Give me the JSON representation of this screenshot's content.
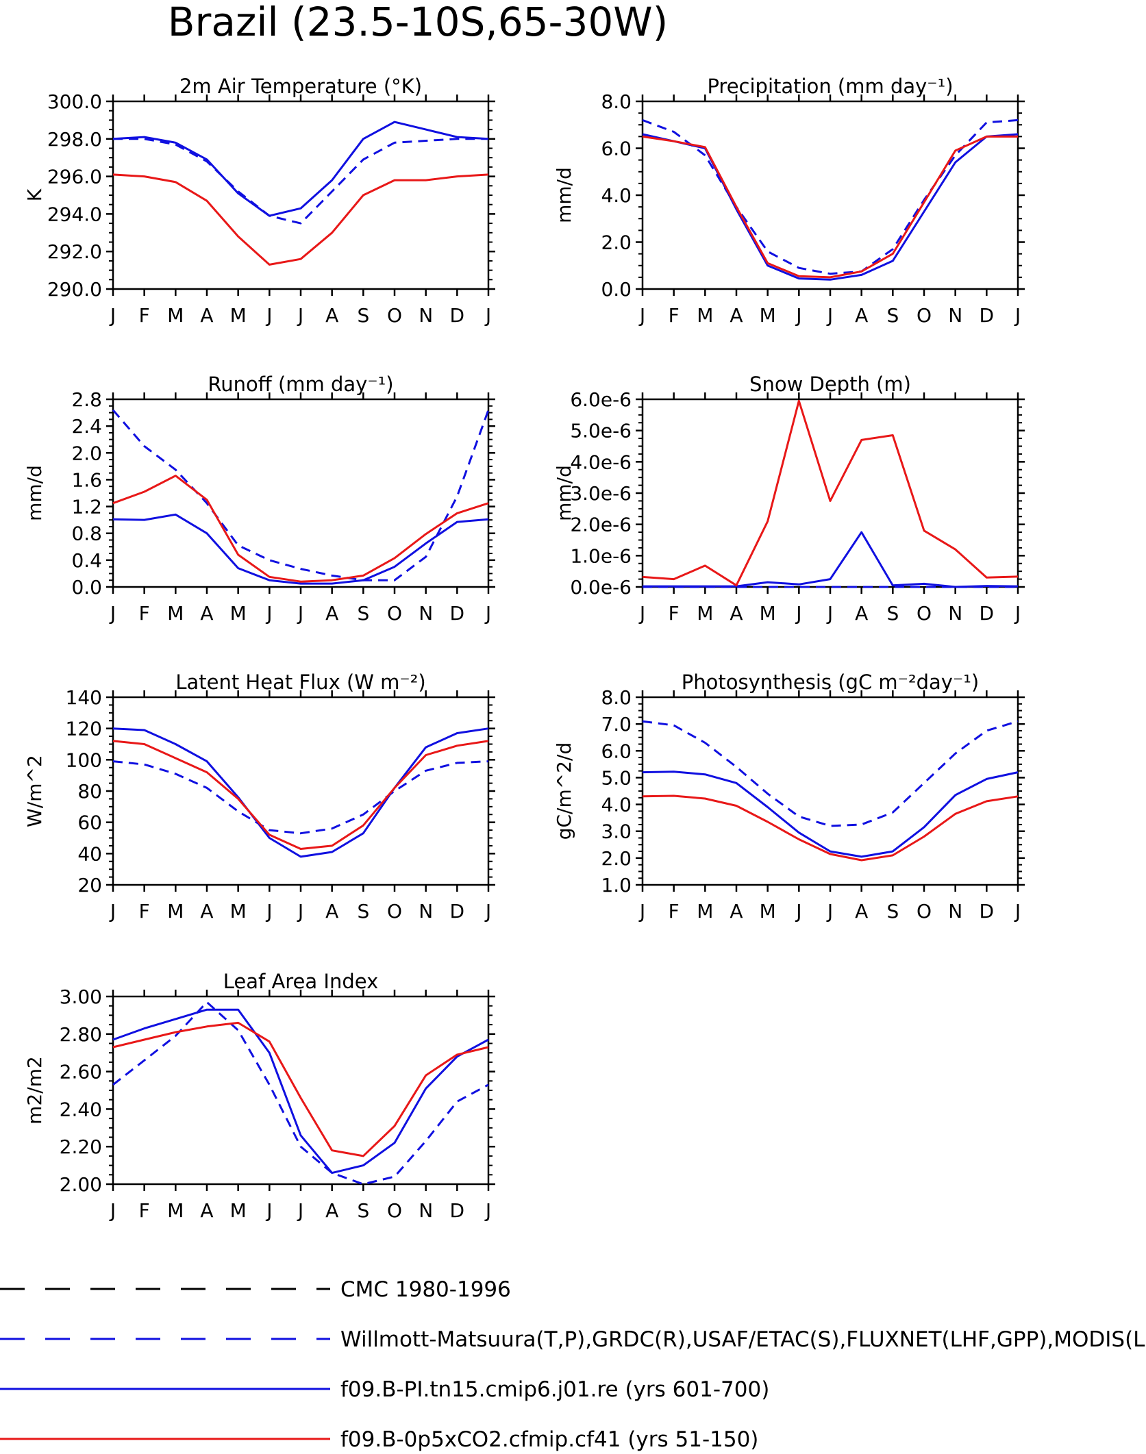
{
  "title": "Brazil (23.5-10S,65-30W)",
  "months": [
    "J",
    "F",
    "M",
    "A",
    "M",
    "J",
    "J",
    "A",
    "S",
    "O",
    "N",
    "D",
    "J"
  ],
  "colors": {
    "obs_blue": "#1010e0",
    "model_red": "#e81818",
    "black": "#000000"
  },
  "legend": [
    {
      "label": "CMC 1980-1996",
      "color": "#000000",
      "dash": true
    },
    {
      "label": "Willmott-Matsuura(T,P),GRDC(R),USAF/ETAC(S),FLUXNET(LHF,GPP),MODIS(L",
      "color": "#1010e0",
      "dash": true
    },
    {
      "label": "f09.B-PI.tn15.cmip6.j01.re (yrs 601-700)",
      "color": "#1010e0",
      "dash": false
    },
    {
      "label": "f09.B-0p5xCO2.cfmip.cf41 (yrs 51-150)",
      "color": "#e81818",
      "dash": false
    }
  ],
  "chart_data": [
    {
      "type": "line",
      "title": "2m Air Temperature (°K)",
      "ylabel": "K",
      "ylim": [
        290,
        300
      ],
      "yticks": [
        "290.0",
        "292.0",
        "294.0",
        "296.0",
        "298.0",
        "300.0"
      ],
      "x": [
        "J",
        "F",
        "M",
        "A",
        "M",
        "J",
        "J",
        "A",
        "S",
        "O",
        "N",
        "D",
        "J"
      ],
      "series": [
        {
          "style": "obs",
          "values": [
            298.0,
            298.0,
            297.7,
            296.8,
            295.2,
            293.9,
            293.5,
            295.2,
            296.9,
            297.8,
            297.9,
            298.0,
            298.0
          ]
        },
        {
          "style": "pi",
          "values": [
            298.0,
            298.1,
            297.8,
            296.9,
            295.1,
            293.9,
            294.3,
            295.8,
            298.0,
            298.9,
            298.5,
            298.1,
            298.0
          ]
        },
        {
          "style": "co2",
          "values": [
            296.1,
            296.0,
            295.7,
            294.7,
            292.8,
            291.3,
            291.6,
            293.0,
            295.0,
            295.8,
            295.8,
            296.0,
            296.1
          ]
        }
      ]
    },
    {
      "type": "line",
      "title": "Precipitation (mm day⁻¹)",
      "ylabel": "mm/d",
      "ylim": [
        0,
        8
      ],
      "yticks": [
        "0.0",
        "2.0",
        "4.0",
        "6.0",
        "8.0"
      ],
      "x": [
        "J",
        "F",
        "M",
        "A",
        "M",
        "J",
        "J",
        "A",
        "S",
        "O",
        "N",
        "D",
        "J"
      ],
      "series": [
        {
          "style": "obs",
          "values": [
            7.2,
            6.7,
            5.7,
            3.5,
            1.6,
            0.9,
            0.65,
            0.75,
            1.7,
            3.8,
            5.7,
            7.1,
            7.2
          ]
        },
        {
          "style": "pi",
          "values": [
            6.6,
            6.3,
            6.0,
            3.4,
            1.0,
            0.45,
            0.4,
            0.6,
            1.2,
            3.3,
            5.4,
            6.5,
            6.6
          ]
        },
        {
          "style": "co2",
          "values": [
            6.5,
            6.3,
            6.05,
            3.5,
            1.1,
            0.55,
            0.5,
            0.75,
            1.5,
            3.7,
            5.9,
            6.5,
            6.5
          ]
        }
      ]
    },
    {
      "type": "line",
      "title": "Runoff (mm day⁻¹)",
      "ylabel": "mm/d",
      "ylim": [
        0,
        2.8
      ],
      "yticks": [
        "0.0",
        "0.4",
        "0.8",
        "1.2",
        "1.6",
        "2.0",
        "2.4",
        "2.8"
      ],
      "x": [
        "J",
        "F",
        "M",
        "A",
        "M",
        "J",
        "J",
        "A",
        "S",
        "O",
        "N",
        "D",
        "J"
      ],
      "series": [
        {
          "style": "obs",
          "values": [
            2.64,
            2.1,
            1.75,
            1.25,
            0.62,
            0.4,
            0.27,
            0.17,
            0.1,
            0.1,
            0.45,
            1.35,
            2.64
          ]
        },
        {
          "style": "pi",
          "values": [
            1.01,
            1.0,
            1.08,
            0.8,
            0.28,
            0.1,
            0.05,
            0.05,
            0.1,
            0.3,
            0.65,
            0.97,
            1.01
          ]
        },
        {
          "style": "co2",
          "values": [
            1.25,
            1.42,
            1.66,
            1.3,
            0.48,
            0.15,
            0.08,
            0.1,
            0.17,
            0.43,
            0.79,
            1.1,
            1.25
          ]
        }
      ]
    },
    {
      "type": "line",
      "title": "Snow Depth (m)",
      "ylabel": "mm/d",
      "ylim": [
        0,
        6
      ],
      "yticks": [
        "0.0e-6",
        "1.0e-6",
        "2.0e-6",
        "3.0e-6",
        "4.0e-6",
        "5.0e-6",
        "6.0e-6"
      ],
      "x": [
        "J",
        "F",
        "M",
        "A",
        "M",
        "J",
        "J",
        "A",
        "S",
        "O",
        "N",
        "D",
        "J"
      ],
      "series": [
        {
          "style": "obs",
          "values": [
            0,
            0,
            0,
            0,
            0,
            0,
            0,
            0,
            0,
            0,
            0,
            0,
            0
          ]
        },
        {
          "style": "pi",
          "values": [
            0.02,
            0.02,
            0.02,
            0.02,
            0.15,
            0.08,
            0.25,
            1.75,
            0.05,
            0.1,
            0.0,
            0.03,
            0.02
          ]
        },
        {
          "style": "co2",
          "values": [
            0.32,
            0.25,
            0.68,
            0.05,
            2.1,
            5.95,
            2.75,
            4.7,
            4.85,
            1.8,
            1.2,
            0.3,
            0.33
          ]
        }
      ]
    },
    {
      "type": "line",
      "title": "Latent Heat Flux (W m⁻²)",
      "ylabel": "W/m^2",
      "ylim": [
        20,
        140
      ],
      "yticks": [
        "20",
        "40",
        "60",
        "80",
        "100",
        "120",
        "140"
      ],
      "x": [
        "J",
        "F",
        "M",
        "A",
        "M",
        "J",
        "J",
        "A",
        "S",
        "O",
        "N",
        "D",
        "J"
      ],
      "series": [
        {
          "style": "obs",
          "values": [
            99,
            97,
            91,
            82,
            67,
            55,
            53,
            56,
            65,
            80,
            93,
            98,
            99
          ]
        },
        {
          "style": "pi",
          "values": [
            120,
            119,
            110,
            99,
            76,
            50,
            38,
            41,
            53,
            82,
            108,
            117,
            120
          ]
        },
        {
          "style": "co2",
          "values": [
            112,
            110,
            101,
            92,
            75,
            52,
            43,
            45,
            58,
            82,
            103,
            109,
            112
          ]
        }
      ]
    },
    {
      "type": "line",
      "title": "Photosynthesis (gC m⁻²day⁻¹)",
      "ylabel": "gC/m^2/d",
      "ylim": [
        1,
        8
      ],
      "yticks": [
        "1.0",
        "2.0",
        "3.0",
        "4.0",
        "5.0",
        "6.0",
        "7.0",
        "8.0"
      ],
      "x": [
        "J",
        "F",
        "M",
        "A",
        "M",
        "J",
        "J",
        "A",
        "S",
        "O",
        "N",
        "D",
        "J"
      ],
      "series": [
        {
          "style": "obs",
          "values": [
            7.1,
            6.95,
            6.3,
            5.4,
            4.4,
            3.55,
            3.2,
            3.25,
            3.7,
            4.8,
            5.9,
            6.75,
            7.1
          ]
        },
        {
          "style": "pi",
          "values": [
            5.2,
            5.22,
            5.12,
            4.8,
            3.9,
            2.95,
            2.25,
            2.05,
            2.25,
            3.15,
            4.35,
            4.95,
            5.2
          ]
        },
        {
          "style": "co2",
          "values": [
            4.3,
            4.32,
            4.22,
            3.95,
            3.35,
            2.7,
            2.15,
            1.92,
            2.1,
            2.8,
            3.65,
            4.12,
            4.3
          ]
        }
      ]
    },
    {
      "type": "line",
      "title": "Leaf Area Index",
      "ylabel": "m2/m2",
      "ylim": [
        2.0,
        3.0
      ],
      "yticks": [
        "2.00",
        "2.20",
        "2.40",
        "2.60",
        "2.80",
        "3.00"
      ],
      "x": [
        "J",
        "F",
        "M",
        "A",
        "M",
        "J",
        "J",
        "A",
        "S",
        "O",
        "N",
        "D",
        "J"
      ],
      "series": [
        {
          "style": "obs",
          "values": [
            2.53,
            2.66,
            2.79,
            2.97,
            2.82,
            2.53,
            2.2,
            2.06,
            2.0,
            2.04,
            2.23,
            2.44,
            2.53
          ]
        },
        {
          "style": "pi",
          "values": [
            2.77,
            2.83,
            2.88,
            2.93,
            2.93,
            2.7,
            2.26,
            2.06,
            2.1,
            2.22,
            2.51,
            2.68,
            2.77
          ]
        },
        {
          "style": "co2",
          "values": [
            2.73,
            2.77,
            2.81,
            2.84,
            2.86,
            2.76,
            2.46,
            2.18,
            2.15,
            2.31,
            2.58,
            2.69,
            2.73
          ]
        }
      ]
    }
  ]
}
